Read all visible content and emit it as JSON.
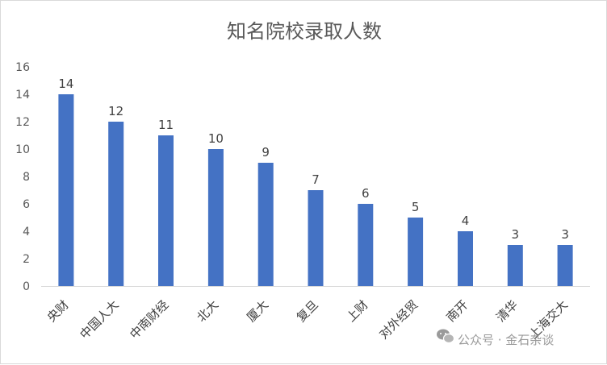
{
  "chart_data": {
    "type": "bar",
    "title": "知名院校录取人数",
    "categories": [
      "央财",
      "中国人大",
      "中南财经",
      "北大",
      "厦大",
      "复旦",
      "上财",
      "对外经贸",
      "南开",
      "清华",
      "上海交大"
    ],
    "values": [
      14,
      12,
      11,
      10,
      9,
      7,
      6,
      5,
      4,
      3,
      3
    ],
    "ylim": [
      0,
      16
    ],
    "yticks": [
      0,
      2,
      4,
      6,
      8,
      10,
      12,
      14,
      16
    ],
    "grid": false,
    "legend": "none",
    "bar_color": "#4472c4",
    "data_labels": true
  },
  "watermark": {
    "text": "公众号 · 金石杂谈",
    "icon": "wechat-icon"
  }
}
